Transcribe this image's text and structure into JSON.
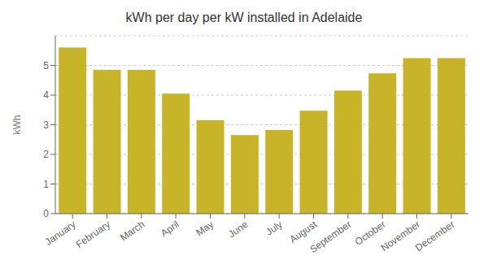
{
  "chart_data": {
    "type": "bar",
    "title": "kWh per day per kW installed in Adelaide",
    "categories": [
      "January",
      "February",
      "March",
      "April",
      "May",
      "June",
      "July",
      "August",
      "September",
      "October",
      "November",
      "December"
    ],
    "values": [
      5.6,
      4.85,
      4.85,
      4.05,
      3.15,
      2.65,
      2.82,
      3.47,
      4.15,
      4.73,
      5.25,
      5.25
    ],
    "color": "#C8B429",
    "ylabel": "kWh",
    "ylim": [
      0,
      6.0
    ],
    "yticks": [
      0,
      1,
      2,
      3,
      4,
      5
    ],
    "grid": true
  }
}
